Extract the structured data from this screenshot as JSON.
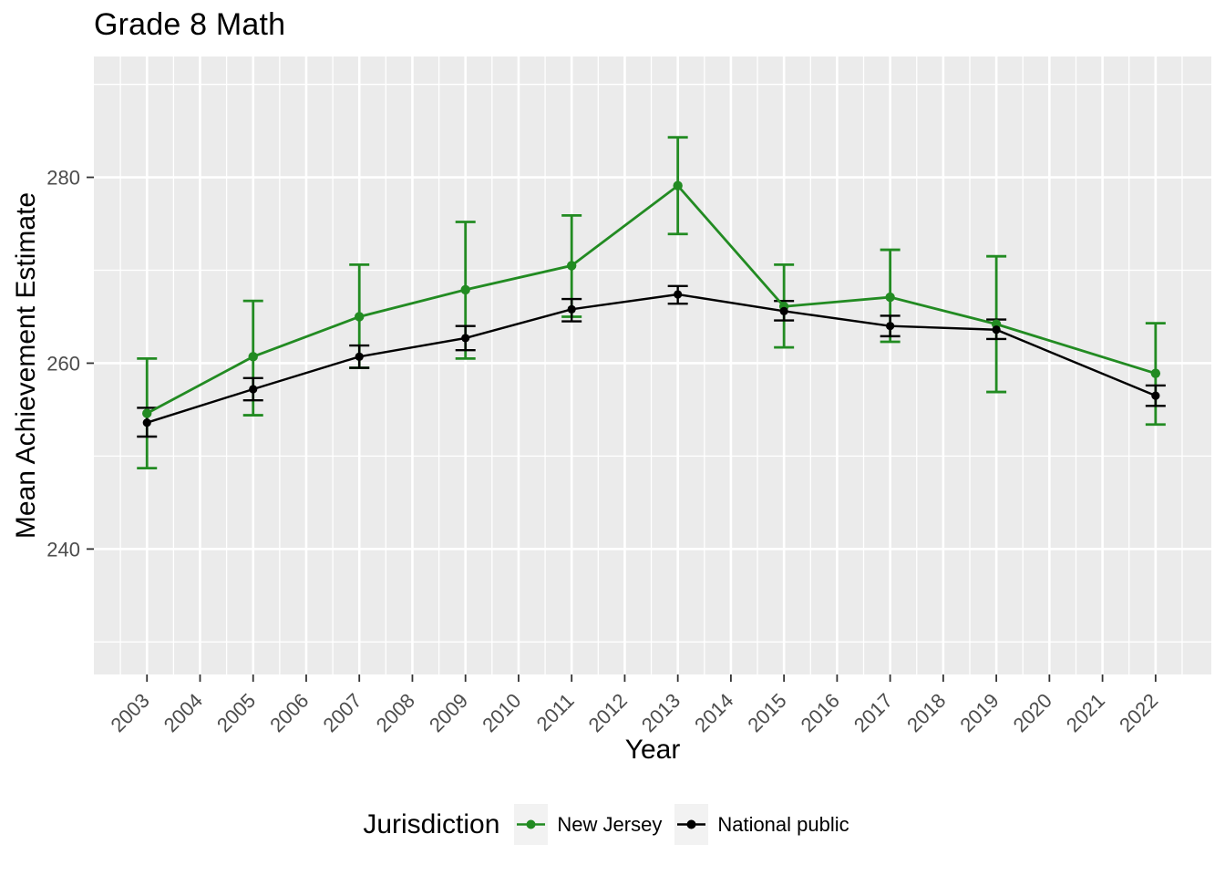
{
  "chart_data": {
    "type": "line",
    "title": "Grade 8 Math",
    "xlabel": "Year",
    "ylabel": "Mean Achievement Estimate",
    "legend_title": "Jurisdiction",
    "legend_position": "bottom",
    "panel_background": "#EBEBEB",
    "gridline_color": "#FFFFFF",
    "axis_tick_color": "#333333",
    "axis_text_color": "#4D4D4D",
    "xlim": [
      2002.0,
      2023.05
    ],
    "ylim": [
      226.5,
      293.0
    ],
    "x_ticks": [
      2003,
      2004,
      2005,
      2006,
      2007,
      2008,
      2009,
      2010,
      2011,
      2012,
      2013,
      2014,
      2015,
      2016,
      2017,
      2018,
      2019,
      2020,
      2021,
      2022
    ],
    "x_minor_ticks": [
      2002.5,
      2003.5,
      2004.5,
      2005.5,
      2006.5,
      2007.5,
      2008.5,
      2009.5,
      2010.5,
      2011.5,
      2012.5,
      2013.5,
      2014.5,
      2015.5,
      2016.5,
      2017.5,
      2018.5,
      2019.5,
      2020.5,
      2021.5,
      2022.5
    ],
    "y_ticks": [
      240,
      260,
      280
    ],
    "y_minor_ticks": [
      230,
      250,
      270,
      290
    ],
    "series": [
      {
        "name": "New Jersey",
        "color": "#228B22",
        "years": [
          2003,
          2005,
          2007,
          2009,
          2011,
          2013,
          2015,
          2017,
          2019,
          2022
        ],
        "values": [
          254.6,
          260.7,
          265.0,
          267.9,
          270.5,
          279.1,
          266.1,
          267.1,
          264.2,
          258.9
        ],
        "ci_low": [
          248.7,
          254.4,
          259.5,
          260.5,
          265.0,
          273.9,
          261.7,
          262.3,
          256.9,
          253.4
        ],
        "ci_high": [
          260.5,
          266.7,
          270.6,
          275.2,
          275.9,
          284.3,
          270.6,
          272.2,
          271.5,
          264.3
        ]
      },
      {
        "name": "National public",
        "color": "#000000",
        "years": [
          2003,
          2005,
          2007,
          2009,
          2011,
          2013,
          2015,
          2017,
          2019,
          2022
        ],
        "values": [
          253.6,
          257.2,
          260.7,
          262.7,
          265.8,
          267.4,
          265.6,
          264.0,
          263.6,
          256.5
        ],
        "ci_low": [
          252.1,
          256.0,
          259.5,
          261.4,
          264.5,
          266.4,
          264.6,
          262.9,
          262.6,
          255.4
        ],
        "ci_high": [
          255.2,
          258.4,
          261.9,
          264.0,
          266.9,
          268.3,
          266.7,
          265.1,
          264.7,
          257.6
        ]
      }
    ]
  },
  "legend": {
    "title": "Jurisdiction",
    "items": [
      {
        "label": "New Jersey",
        "color": "#228B22"
      },
      {
        "label": "National public",
        "color": "#000000"
      }
    ]
  }
}
